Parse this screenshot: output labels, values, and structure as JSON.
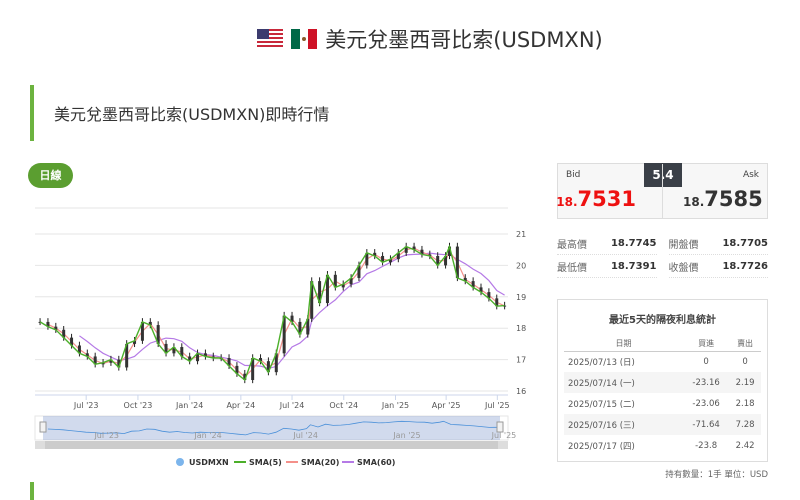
{
  "page_title": "美元兌墨西哥比索(USDMXN)",
  "section_title": "美元兌墨西哥比索(USDMXN)即時行情",
  "interval_button": "日線",
  "quote": {
    "bid_label": "Bid",
    "ask_label": "Ask",
    "spread": "5.4",
    "bid_prefix": "18.",
    "bid_main": "7531",
    "ask_prefix": "18.",
    "ask_main": "7585",
    "bid_color": "#ee1111"
  },
  "stats": [
    {
      "label": "最高價",
      "value": "18.7745"
    },
    {
      "label": "開盤價",
      "value": "18.7705"
    },
    {
      "label": "最低價",
      "value": "18.7391"
    },
    {
      "label": "收盤價",
      "value": "18.7726"
    }
  ],
  "rates": {
    "title": "最近5天的隔夜利息統計",
    "headers": [
      "日期",
      "買進",
      "賣出"
    ],
    "rows": [
      [
        "2025/07/13 (日)",
        "0",
        "0"
      ],
      [
        "2025/07/14 (一)",
        "-23.16",
        "2.19"
      ],
      [
        "2025/07/15 (二)",
        "-23.06",
        "2.18"
      ],
      [
        "2025/07/16 (三)",
        "-71.64",
        "7.28"
      ],
      [
        "2025/07/17 (四)",
        "-23.8",
        "2.42"
      ]
    ]
  },
  "footer": "持有數量：1手 單位：USD",
  "chart_data": {
    "type": "line",
    "ylim": [
      16,
      21
    ],
    "yticks": [
      "16",
      "17",
      "18",
      "19",
      "20",
      "21"
    ],
    "xticks": [
      "Jul '23",
      "Oct '23",
      "Jan '24",
      "Apr '24",
      "Jul '24",
      "Oct '24",
      "Jan '25",
      "Apr '25",
      "Jul '25"
    ],
    "navigator_ticks": [
      "Jul '23",
      "Jan '24",
      "Jul '24",
      "Jan '25",
      "Jul '25"
    ],
    "legend": [
      {
        "name": "USDMXN",
        "color": "#7cb5ec"
      },
      {
        "name": "SMA(5)",
        "color": "#4caf2a"
      },
      {
        "name": "SMA(20)",
        "color": "#f4908a"
      },
      {
        "name": "SMA(60)",
        "color": "#b57ae6"
      }
    ],
    "legend_position": "bottom",
    "grid": true,
    "x": [
      "2023-04-10",
      "2023-04-24",
      "2023-05-08",
      "2023-05-22",
      "2023-06-05",
      "2023-06-19",
      "2023-07-03",
      "2023-07-17",
      "2023-07-31",
      "2023-08-14",
      "2023-08-28",
      "2023-09-11",
      "2023-09-25",
      "2023-10-09",
      "2023-10-23",
      "2023-11-06",
      "2023-11-20",
      "2023-12-04",
      "2023-12-18",
      "2024-01-01",
      "2024-01-15",
      "2024-01-29",
      "2024-02-12",
      "2024-02-26",
      "2024-03-11",
      "2024-03-25",
      "2024-04-08",
      "2024-04-22",
      "2024-05-06",
      "2024-05-20",
      "2024-06-03",
      "2024-06-17",
      "2024-07-01",
      "2024-07-15",
      "2024-07-29",
      "2024-08-05",
      "2024-08-19",
      "2024-09-02",
      "2024-09-16",
      "2024-09-30",
      "2024-10-14",
      "2024-10-28",
      "2024-11-11",
      "2024-11-25",
      "2024-12-09",
      "2024-12-23",
      "2025-01-06",
      "2025-01-20",
      "2025-02-03",
      "2025-02-17",
      "2025-03-03",
      "2025-03-17",
      "2025-03-31",
      "2025-04-07",
      "2025-04-21",
      "2025-05-05",
      "2025-05-19",
      "2025-06-02",
      "2025-06-16",
      "2025-06-30",
      "2025-07-14"
    ],
    "close": [
      18.2,
      18.05,
      17.95,
      17.7,
      17.45,
      17.2,
      17.1,
      16.85,
      16.9,
      17.0,
      16.75,
      17.5,
      17.6,
      18.2,
      18.1,
      17.5,
      17.2,
      17.4,
      17.1,
      16.95,
      17.2,
      17.1,
      17.05,
      17.05,
      16.8,
      16.55,
      16.35,
      17.05,
      16.95,
      16.6,
      17.2,
      18.4,
      18.2,
      17.8,
      18.3,
      19.5,
      18.8,
      19.7,
      19.3,
      19.4,
      19.6,
      20.0,
      20.4,
      20.3,
      20.1,
      20.2,
      20.4,
      20.6,
      20.5,
      20.35,
      20.3,
      20.0,
      20.3,
      20.6,
      19.6,
      19.5,
      19.3,
      19.15,
      18.95,
      18.7,
      18.72
    ]
  }
}
